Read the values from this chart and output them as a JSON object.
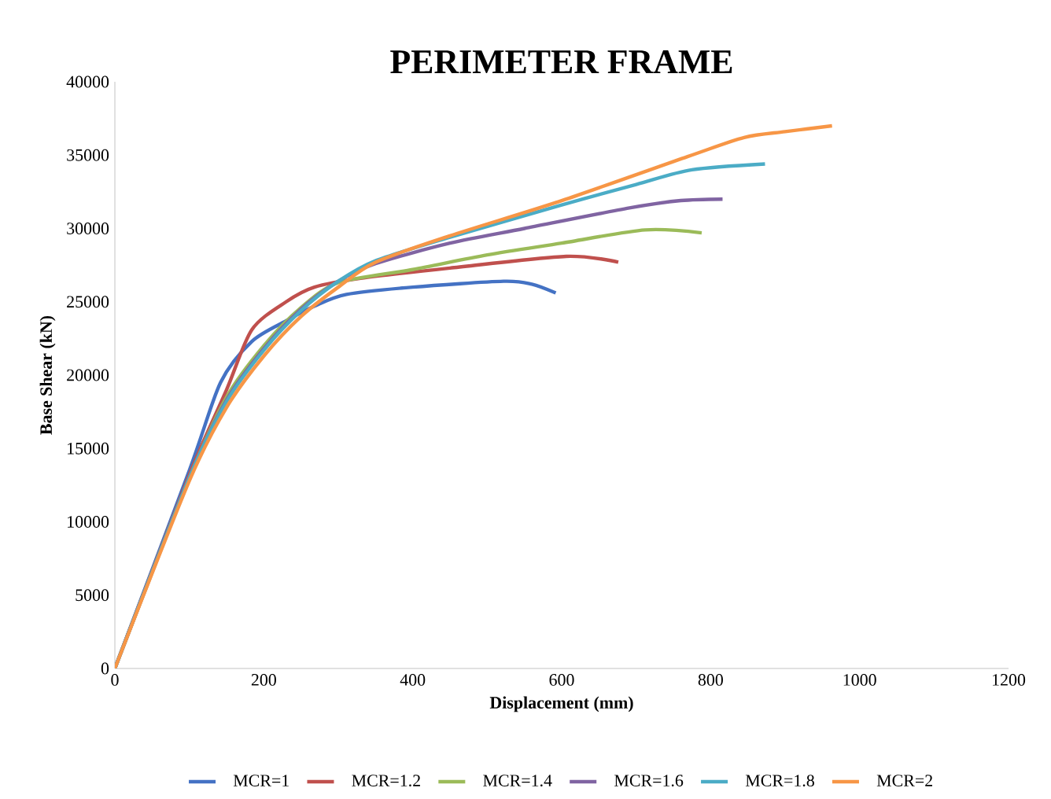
{
  "chart_data": {
    "type": "line",
    "title": "PERIMETER FRAME",
    "xlabel": "Displacement (mm)",
    "ylabel": "Base Shear (kN)",
    "xlim": [
      0,
      1200
    ],
    "xticks": [
      0,
      200,
      400,
      600,
      800,
      1000,
      1200
    ],
    "ylim": [
      0,
      40000
    ],
    "yticks": [
      0,
      5000,
      10000,
      15000,
      20000,
      25000,
      30000,
      35000,
      40000
    ],
    "grid": false,
    "legend": "bottom",
    "marker": "none",
    "series": [
      {
        "name": "MCR=1",
        "color": "#4472c4",
        "x": [
          0,
          100,
          142,
          184,
          230,
          268,
          311,
          400,
          522,
          560,
          592
        ],
        "values": [
          0,
          13500,
          19500,
          22300,
          23700,
          24700,
          25500,
          26000,
          26400,
          26200,
          25600
        ]
      },
      {
        "name": "MCR=1.2",
        "color": "#c0504d",
        "x": [
          0,
          100,
          150,
          184,
          230,
          268,
          330,
          450,
          606,
          676
        ],
        "values": [
          0,
          13200,
          19000,
          23100,
          25000,
          26000,
          26600,
          27300,
          28100,
          27700
        ]
      },
      {
        "name": "MCR=1.4",
        "color": "#9bbb59",
        "x": [
          0,
          100,
          150,
          200,
          250,
          300,
          400,
          500,
          600,
          712,
          788
        ],
        "values": [
          0,
          13000,
          18500,
          22000,
          24600,
          26300,
          27200,
          28200,
          29000,
          29900,
          29700
        ]
      },
      {
        "name": "MCR=1.6",
        "color": "#8064a2",
        "x": [
          0,
          100,
          150,
          200,
          250,
          300,
          350,
          450,
          550,
          691,
          760,
          816
        ],
        "values": [
          0,
          13000,
          18300,
          21800,
          24500,
          26400,
          27600,
          29000,
          30000,
          31400,
          31900,
          32000
        ]
      },
      {
        "name": "MCR=1.8",
        "color": "#4bacc6",
        "x": [
          0,
          100,
          150,
          200,
          250,
          300,
          350,
          450,
          600,
          700,
          775,
          873
        ],
        "values": [
          0,
          13000,
          18200,
          21700,
          24400,
          26400,
          27800,
          29400,
          31600,
          33000,
          34000,
          34400
        ]
      },
      {
        "name": "MCR=2",
        "color": "#f79646",
        "x": [
          0,
          100,
          150,
          200,
          250,
          300,
          350,
          450,
          600,
          769,
          845,
          900,
          963
        ],
        "values": [
          0,
          12800,
          17800,
          21300,
          24000,
          26000,
          27700,
          29500,
          31900,
          34900,
          36200,
          36600,
          37000
        ]
      }
    ]
  }
}
